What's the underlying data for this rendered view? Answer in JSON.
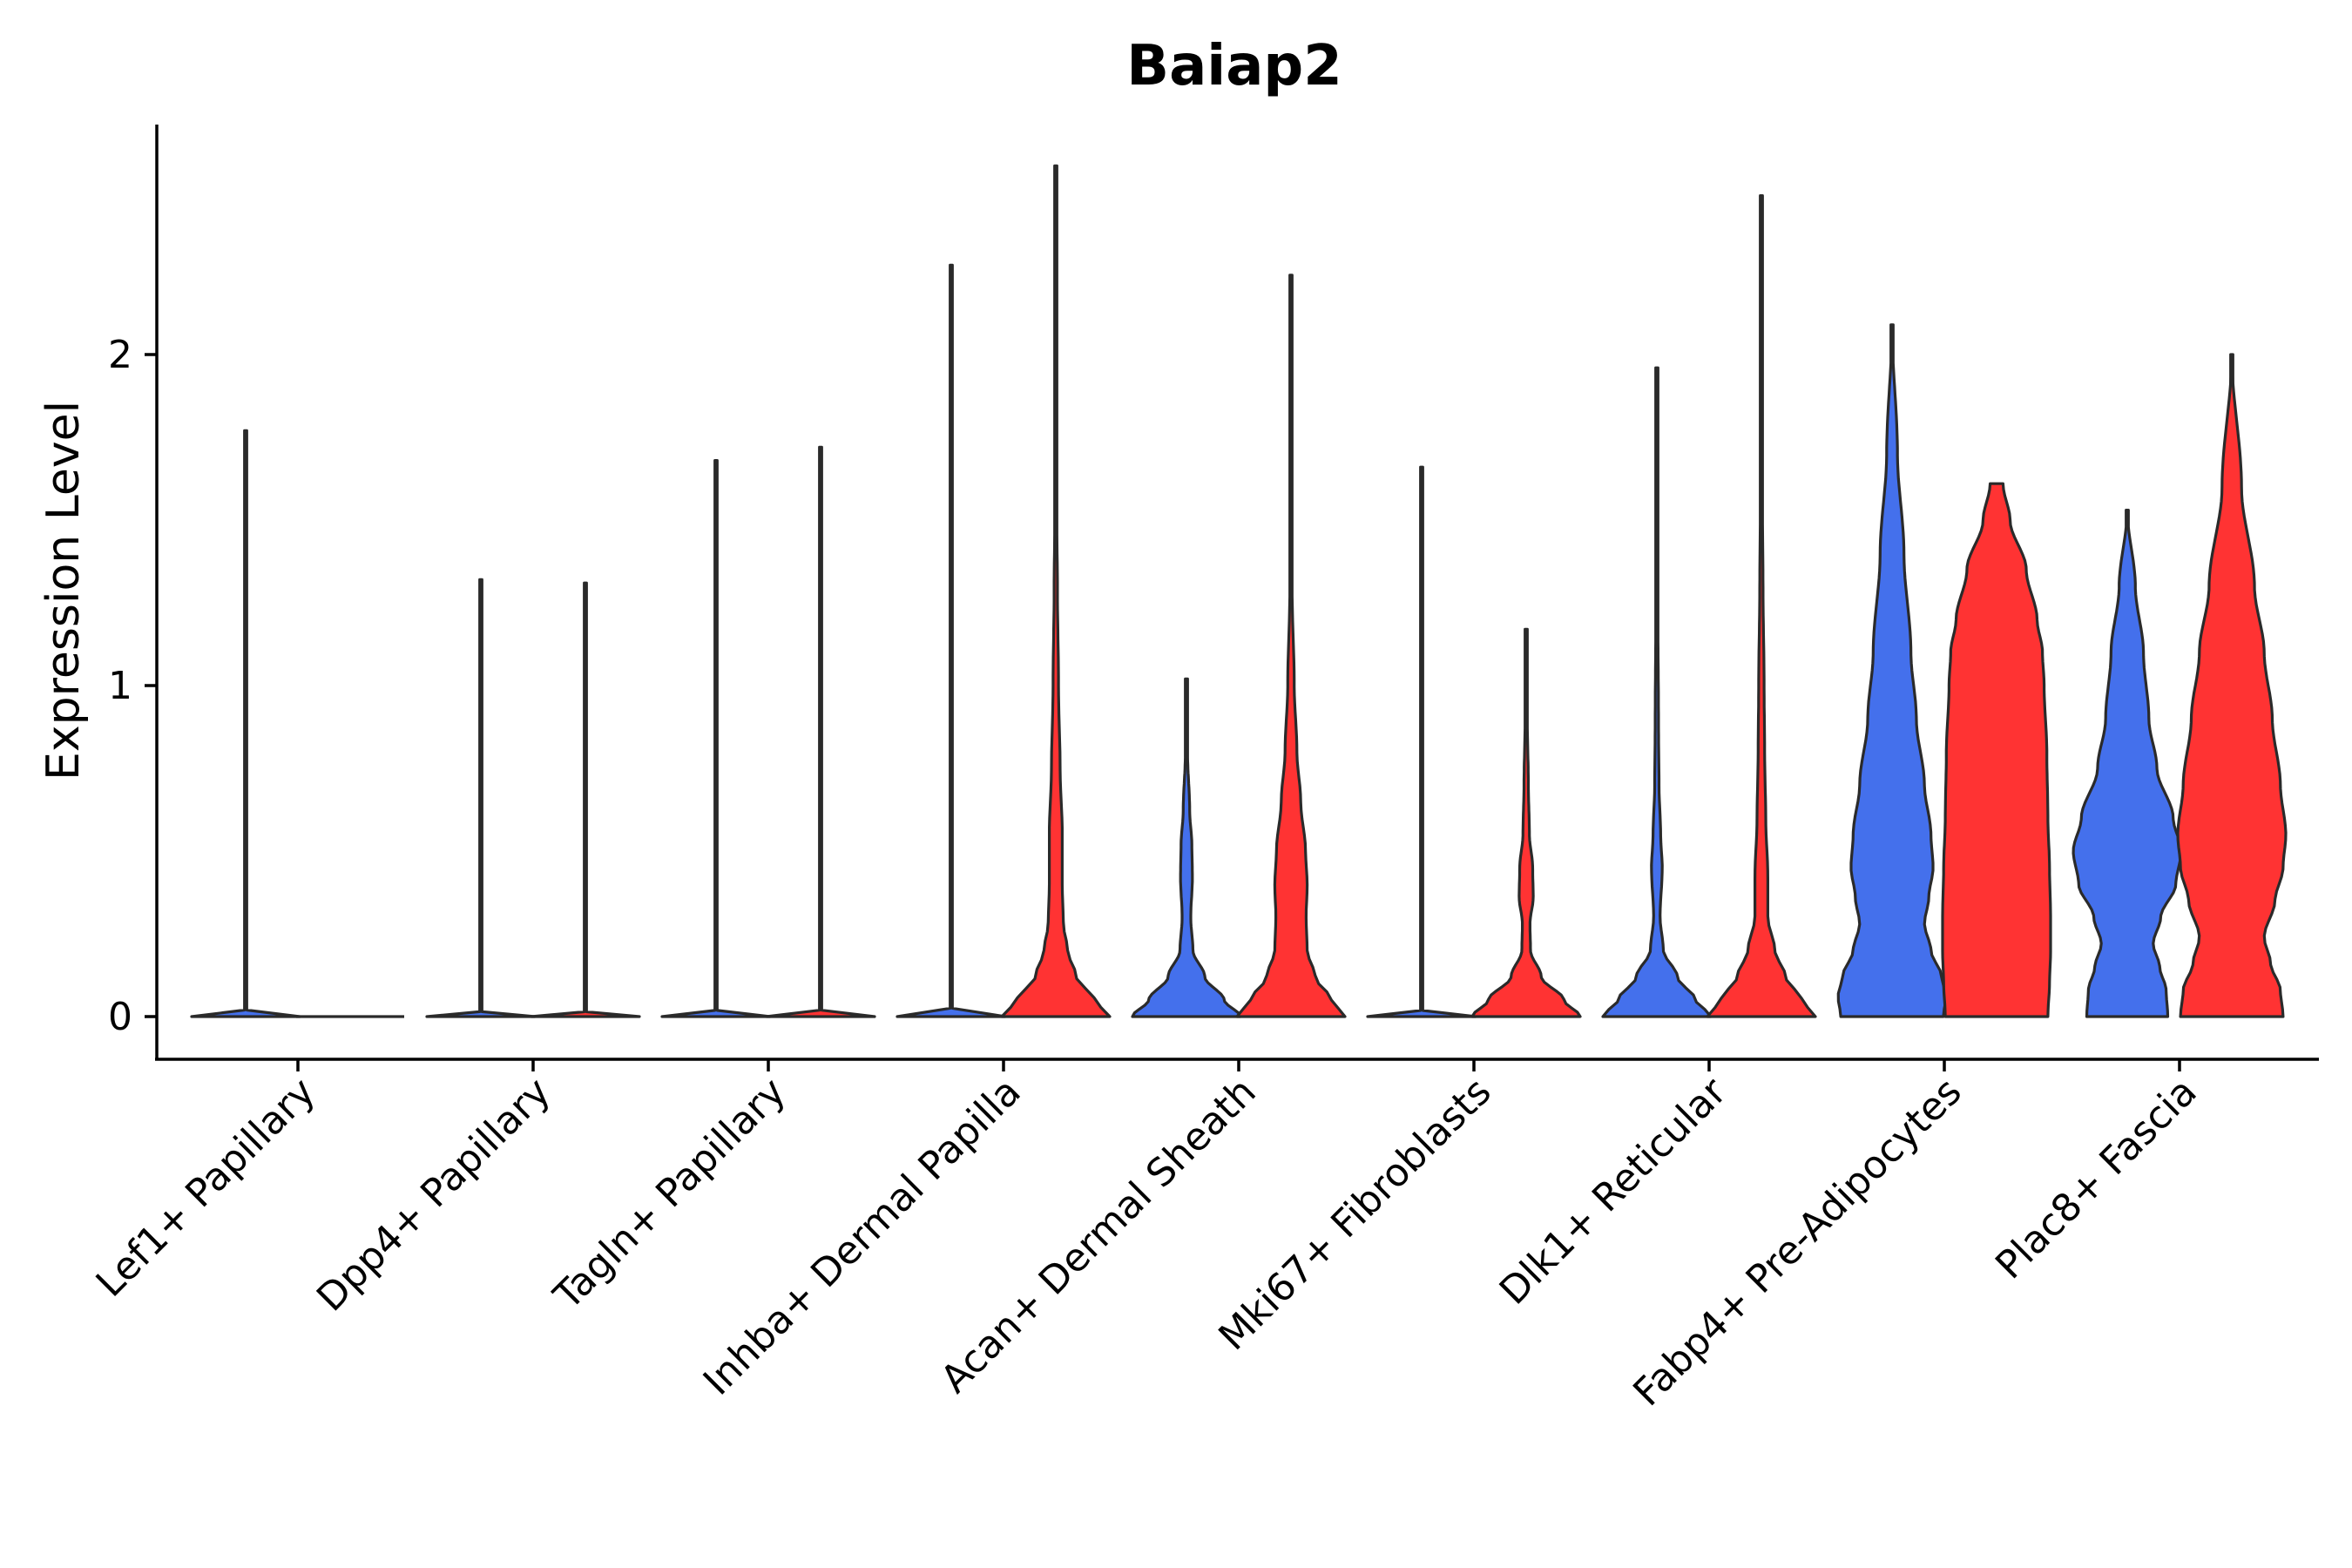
{
  "chart_data": {
    "type": "violin",
    "title": "Baiap2",
    "xlabel": "",
    "ylabel": "Expression Level",
    "ylim": [
      -0.13,
      2.7
    ],
    "yticks": [
      0,
      1,
      2
    ],
    "grid": false,
    "legend": "none",
    "colors": {
      "blue": "#4470EC",
      "red": "#FF3333"
    },
    "categories": [
      "Lef1+ Papillary",
      "Dpp4+ Papillary",
      "Tagln+ Papillary",
      "Inhba+ Dermal Papilla",
      "Acan+ Dermal Sheath",
      "Mki67+ Fibroblasts",
      "Dlk1+ Reticular",
      "Fabp4+ Pre-Adipocytes",
      "Plac8+ Fascia"
    ],
    "violins": [
      {
        "category": 0,
        "group": "blue",
        "max": 1.77,
        "profile": [
          [
            0,
            1
          ]
        ]
      },
      {
        "category": 0,
        "group": "red",
        "max": 0,
        "profile": [
          [
            0,
            1
          ]
        ]
      },
      {
        "category": 1,
        "group": "blue",
        "max": 1.32,
        "profile": [
          [
            0,
            1
          ]
        ]
      },
      {
        "category": 1,
        "group": "red",
        "max": 1.31,
        "profile": [
          [
            0,
            1
          ]
        ]
      },
      {
        "category": 2,
        "group": "blue",
        "max": 1.68,
        "profile": [
          [
            0,
            1
          ]
        ]
      },
      {
        "category": 2,
        "group": "red",
        "max": 1.72,
        "profile": [
          [
            0,
            1
          ]
        ]
      },
      {
        "category": 3,
        "group": "blue",
        "max": 2.27,
        "profile": [
          [
            0,
            1
          ]
        ]
      },
      {
        "category": 3,
        "group": "red",
        "max": 2.57,
        "profile": [
          [
            0,
            1
          ],
          [
            0.05,
            0.72
          ],
          [
            0.12,
            0.38
          ],
          [
            0.2,
            0.22
          ],
          [
            0.28,
            0.14
          ],
          [
            0.4,
            0.12
          ],
          [
            0.55,
            0.12
          ],
          [
            0.75,
            0.08
          ],
          [
            1.0,
            0.05
          ],
          [
            1.3,
            0.03
          ],
          [
            1.6,
            0.01
          ],
          [
            2.57,
            0
          ]
        ]
      },
      {
        "category": 4,
        "group": "blue",
        "max": 1.02,
        "profile": [
          [
            0,
            1
          ],
          [
            0.05,
            0.7
          ],
          [
            0.12,
            0.34
          ],
          [
            0.2,
            0.12
          ],
          [
            0.3,
            0.08
          ],
          [
            0.42,
            0.11
          ],
          [
            0.52,
            0.1
          ],
          [
            0.62,
            0.06
          ],
          [
            0.8,
            0.02
          ],
          [
            1.02,
            0
          ]
        ]
      },
      {
        "category": 4,
        "group": "red",
        "max": 2.24,
        "profile": [
          [
            0,
            1
          ],
          [
            0.05,
            0.75
          ],
          [
            0.12,
            0.45
          ],
          [
            0.2,
            0.3
          ],
          [
            0.3,
            0.28
          ],
          [
            0.4,
            0.3
          ],
          [
            0.5,
            0.27
          ],
          [
            0.65,
            0.18
          ],
          [
            0.8,
            0.11
          ],
          [
            1.0,
            0.06
          ],
          [
            1.3,
            0.02
          ],
          [
            1.6,
            0.01
          ],
          [
            2.24,
            0
          ]
        ]
      },
      {
        "category": 5,
        "group": "blue",
        "max": 1.66,
        "profile": [
          [
            0,
            1
          ]
        ]
      },
      {
        "category": 5,
        "group": "red",
        "max": 1.17,
        "profile": [
          [
            0,
            1
          ],
          [
            0.05,
            0.7
          ],
          [
            0.12,
            0.28
          ],
          [
            0.2,
            0.08
          ],
          [
            0.28,
            0.07
          ],
          [
            0.36,
            0.13
          ],
          [
            0.45,
            0.12
          ],
          [
            0.55,
            0.06
          ],
          [
            0.7,
            0.04
          ],
          [
            0.9,
            0.02
          ],
          [
            1.17,
            0
          ]
        ]
      },
      {
        "category": 6,
        "group": "blue",
        "max": 1.96,
        "profile": [
          [
            0,
            1
          ],
          [
            0.05,
            0.72
          ],
          [
            0.12,
            0.38
          ],
          [
            0.2,
            0.12
          ],
          [
            0.3,
            0.06
          ],
          [
            0.45,
            0.1
          ],
          [
            0.55,
            0.07
          ],
          [
            0.7,
            0.04
          ],
          [
            0.9,
            0.03
          ],
          [
            1.2,
            0.02
          ],
          [
            1.6,
            0.01
          ],
          [
            1.96,
            0
          ]
        ]
      },
      {
        "category": 6,
        "group": "red",
        "max": 2.48,
        "profile": [
          [
            0,
            1
          ],
          [
            0.05,
            0.75
          ],
          [
            0.12,
            0.45
          ],
          [
            0.2,
            0.25
          ],
          [
            0.3,
            0.12
          ],
          [
            0.42,
            0.12
          ],
          [
            0.6,
            0.08
          ],
          [
            0.8,
            0.06
          ],
          [
            1.0,
            0.05
          ],
          [
            1.3,
            0.03
          ],
          [
            1.7,
            0.01
          ],
          [
            2.48,
            0
          ]
        ]
      },
      {
        "category": 7,
        "group": "blue",
        "max": 2.09,
        "profile": [
          [
            0,
            0.95
          ],
          [
            0.06,
            1
          ],
          [
            0.12,
            0.92
          ],
          [
            0.2,
            0.72
          ],
          [
            0.28,
            0.6
          ],
          [
            0.36,
            0.68
          ],
          [
            0.45,
            0.76
          ],
          [
            0.55,
            0.72
          ],
          [
            0.7,
            0.6
          ],
          [
            0.9,
            0.45
          ],
          [
            1.1,
            0.35
          ],
          [
            1.4,
            0.22
          ],
          [
            1.7,
            0.1
          ],
          [
            2.09,
            0
          ]
        ]
      },
      {
        "category": 7,
        "group": "red",
        "max": 1.61,
        "profile": [
          [
            0,
            0.95
          ],
          [
            0.1,
            0.98
          ],
          [
            0.2,
            1
          ],
          [
            0.3,
            1
          ],
          [
            0.45,
            0.98
          ],
          [
            0.6,
            0.95
          ],
          [
            0.8,
            0.93
          ],
          [
            1.0,
            0.88
          ],
          [
            1.1,
            0.85
          ],
          [
            1.2,
            0.75
          ],
          [
            1.35,
            0.55
          ],
          [
            1.5,
            0.25
          ],
          [
            1.61,
            0.12
          ]
        ]
      },
      {
        "category": 8,
        "group": "blue",
        "max": 1.53,
        "profile": [
          [
            0,
            0.75
          ],
          [
            0.08,
            0.72
          ],
          [
            0.15,
            0.6
          ],
          [
            0.22,
            0.48
          ],
          [
            0.3,
            0.62
          ],
          [
            0.4,
            0.9
          ],
          [
            0.5,
            1
          ],
          [
            0.6,
            0.85
          ],
          [
            0.75,
            0.55
          ],
          [
            0.9,
            0.4
          ],
          [
            1.1,
            0.3
          ],
          [
            1.3,
            0.15
          ],
          [
            1.53,
            0
          ]
        ]
      },
      {
        "category": 8,
        "group": "red",
        "max": 2.0,
        "profile": [
          [
            0,
            0.95
          ],
          [
            0.08,
            0.9
          ],
          [
            0.16,
            0.72
          ],
          [
            0.24,
            0.6
          ],
          [
            0.35,
            0.8
          ],
          [
            0.45,
            0.95
          ],
          [
            0.55,
            1
          ],
          [
            0.7,
            0.9
          ],
          [
            0.9,
            0.75
          ],
          [
            1.1,
            0.6
          ],
          [
            1.3,
            0.42
          ],
          [
            1.6,
            0.18
          ],
          [
            2.0,
            0
          ]
        ]
      }
    ]
  }
}
